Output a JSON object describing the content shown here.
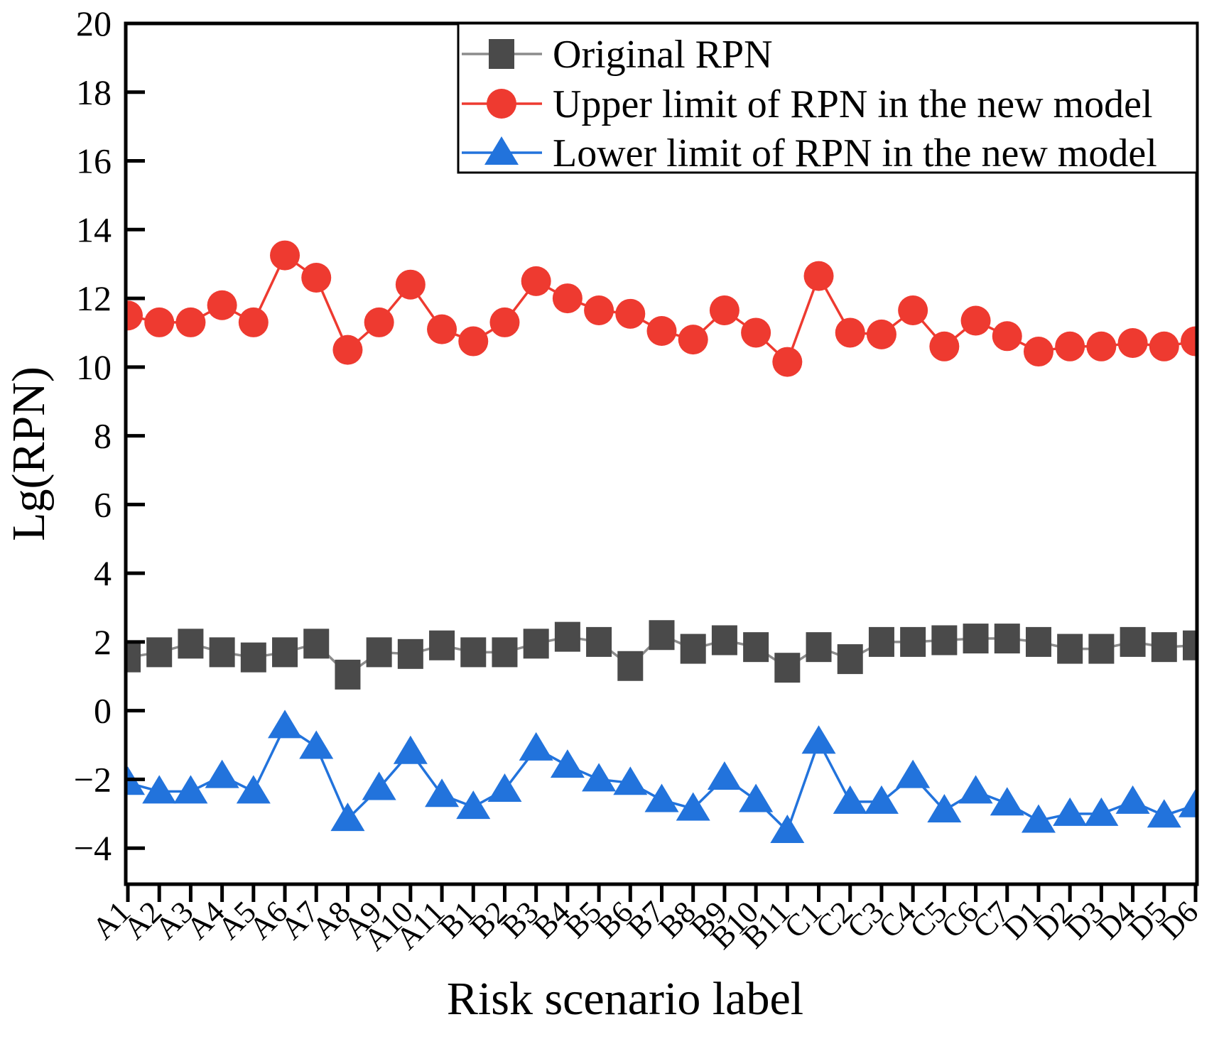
{
  "figure": {
    "background": "#ffffff",
    "frame_color": "#000000"
  },
  "axes": {
    "y_label": "Lg(RPN)",
    "x_label": "Risk scenario label",
    "y_ticks": [
      20,
      18,
      16,
      14,
      12,
      10,
      8,
      6,
      4,
      2,
      0,
      -2,
      -4
    ],
    "y_range": [
      -5.05,
      20
    ]
  },
  "legend": {
    "entries": [
      {
        "label": "Original RPN",
        "marker": "square",
        "marker_color": "#4a4a4a",
        "line_color": "#8c8c8c"
      },
      {
        "label": "Upper limit of RPN in the new model",
        "marker": "circle",
        "marker_color": "#ee3a30",
        "line_color": "#ee3a30"
      },
      {
        "label": "Lower limit of RPN in the new model",
        "marker": "triangle",
        "marker_color": "#2273dc",
        "line_color": "#2273dc"
      }
    ]
  },
  "chart_data": {
    "type": "line",
    "title": "",
    "xlabel": "Risk scenario label",
    "ylabel": "Lg(RPN)",
    "ylim": [
      -5.05,
      20
    ],
    "grid": false,
    "legend_position": "top-right-inside",
    "categories": [
      "A1",
      "A2",
      "A3",
      "A4",
      "A5",
      "A6",
      "A7",
      "A8",
      "A9",
      "A10",
      "A11",
      "B1",
      "B2",
      "B3",
      "B4",
      "B5",
      "B6",
      "B7",
      "B8",
      "B9",
      "B10",
      "B11",
      "C1",
      "C2",
      "C3",
      "C4",
      "C5",
      "C6",
      "C7",
      "D1",
      "D2",
      "D3",
      "D4",
      "D5",
      "D6"
    ],
    "series": [
      {
        "name": "Original RPN",
        "marker": "square",
        "marker_color": "#4a4a4a",
        "line_color": "#8c8c8c",
        "values": [
          1.55,
          1.7,
          1.95,
          1.7,
          1.55,
          1.7,
          1.95,
          1.05,
          1.7,
          1.65,
          1.9,
          1.7,
          1.7,
          1.95,
          2.15,
          2.0,
          1.3,
          2.2,
          1.8,
          2.05,
          1.85,
          1.25,
          1.85,
          1.5,
          2.0,
          2.0,
          2.05,
          2.1,
          2.1,
          2.0,
          1.8,
          1.8,
          2.0,
          1.85,
          1.9
        ]
      },
      {
        "name": "Upper limit of RPN in the new model",
        "marker": "circle",
        "marker_color": "#ee3a30",
        "line_color": "#ee3a30",
        "values": [
          11.5,
          11.3,
          11.3,
          11.8,
          11.3,
          13.25,
          12.6,
          10.5,
          11.3,
          12.4,
          11.1,
          10.75,
          11.3,
          12.5,
          12.0,
          11.65,
          11.55,
          11.05,
          10.8,
          11.65,
          11.0,
          10.15,
          12.65,
          11.0,
          10.95,
          11.65,
          10.6,
          11.35,
          10.9,
          10.45,
          10.6,
          10.6,
          10.7,
          10.6,
          10.75
        ]
      },
      {
        "name": "Lower limit of RPN in the new model",
        "marker": "triangle",
        "marker_color": "#2273dc",
        "line_color": "#2273dc",
        "values": [
          -2.1,
          -2.35,
          -2.35,
          -1.9,
          -2.35,
          -0.45,
          -1.05,
          -3.15,
          -2.25,
          -1.2,
          -2.45,
          -2.8,
          -2.3,
          -1.1,
          -1.6,
          -2.0,
          -2.1,
          -2.6,
          -2.85,
          -1.95,
          -2.6,
          -3.5,
          -0.9,
          -2.65,
          -2.65,
          -1.9,
          -2.9,
          -2.35,
          -2.7,
          -3.2,
          -3.0,
          -3.0,
          -2.65,
          -3.05,
          -2.75
        ]
      }
    ]
  }
}
